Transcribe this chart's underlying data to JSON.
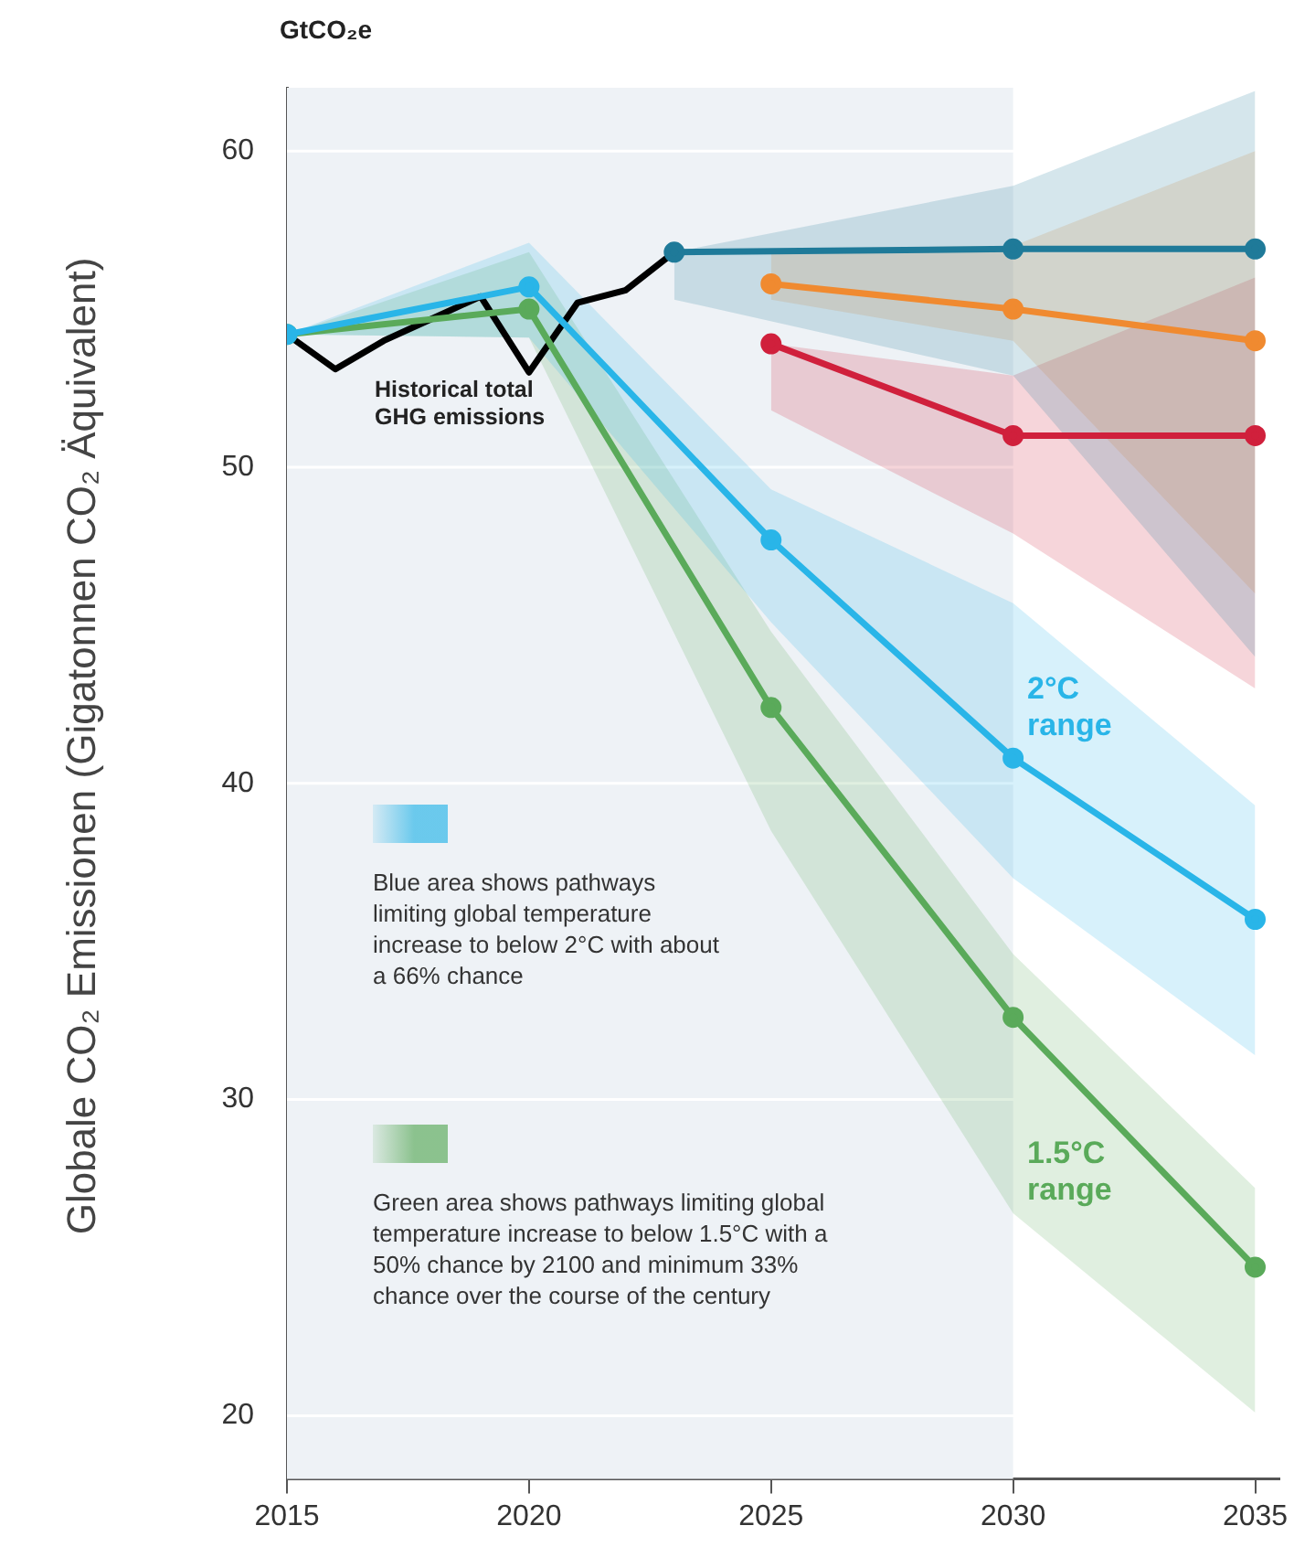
{
  "chart_data": {
    "type": "line",
    "title": "GtCO₂e",
    "ylabel": "Globale CO₂ Emissionen (Gigatonnen CO₂ Äquivalent)",
    "xlim": [
      2015,
      2035.5
    ],
    "xticks": [
      2015,
      2020,
      2025,
      2030,
      2035
    ],
    "ylim": [
      18,
      62
    ],
    "yticks": [
      20,
      30,
      40,
      50,
      60
    ],
    "grid": "y",
    "legend": false,
    "bands": [
      {
        "axis": "x",
        "from": 2015,
        "to": 2030,
        "color": "#eef2f6"
      }
    ],
    "series": [
      {
        "color": "#29b5e8",
        "marker": "circle",
        "x": [
          2015,
          2020,
          2025,
          2030,
          2035
        ],
        "values": [
          54.2,
          55.7,
          47.7,
          40.8,
          35.7
        ],
        "lower": [
          54.2,
          54.1,
          45.1,
          37.0,
          31.4
        ],
        "upper": [
          54.2,
          57.1,
          49.3,
          45.7,
          39.3
        ]
      },
      {
        "color": "#5aaa5a",
        "marker": "circle",
        "x": [
          2015,
          2020,
          2025,
          2030,
          2035
        ],
        "values": [
          54.2,
          55.0,
          42.4,
          32.6,
          24.7
        ],
        "lower": [
          54.2,
          54.1,
          38.5,
          26.4,
          20.1
        ],
        "upper": [
          54.2,
          56.8,
          44.8,
          34.6,
          27.2
        ]
      },
      {
        "color": "#1f7a99",
        "marker": "circle",
        "x": [
          2023,
          2030,
          2035
        ],
        "values": [
          56.8,
          56.9,
          56.9
        ],
        "lower": [
          55.3,
          52.9,
          44.0
        ],
        "upper": [
          56.8,
          58.9,
          61.9
        ]
      },
      {
        "color": "#f08a30",
        "marker": "circle",
        "x": [
          2025,
          2030,
          2035
        ],
        "values": [
          55.8,
          55.0,
          54.0
        ],
        "lower": [
          55.3,
          54.0,
          46.0
        ],
        "upper": [
          56.9,
          57.0,
          60.0
        ]
      },
      {
        "color": "#d0203c",
        "marker": "circle",
        "x": [
          2025,
          2030,
          2035
        ],
        "values": [
          53.9,
          51.0,
          51.0
        ],
        "lower": [
          51.8,
          47.9,
          43.0
        ],
        "upper": [
          53.9,
          52.9,
          56.0
        ]
      },
      {
        "color": "#000000",
        "marker": "none",
        "x": [
          2015,
          2016,
          2017,
          2018,
          2019,
          2020,
          2021,
          2022,
          2023
        ],
        "values": [
          54.2,
          53.1,
          54.0,
          54.7,
          55.4,
          53.0,
          55.2,
          55.6,
          56.8
        ]
      }
    ],
    "annotations": [
      "Historical total GHG emissions",
      "2°C range",
      "1.5°C range",
      "Blue area shows pathways limiting global temperature increase to below 2°C with about a 66% chance",
      "Green area shows pathways limiting global temperature increase to below 1.5°C with a 50% chance by 2100 and minimum 33% chance over the course of the century"
    ]
  }
}
